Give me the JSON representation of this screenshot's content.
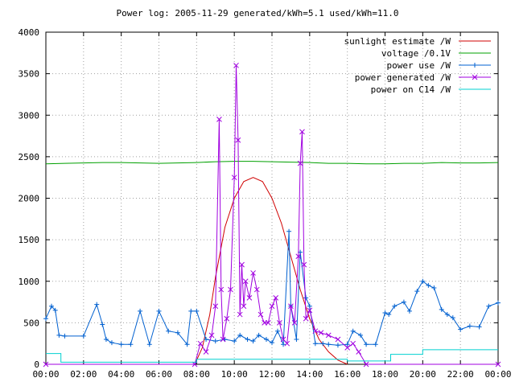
{
  "chart_data": {
    "type": "line",
    "title": "Power log: 2005-11-29 generated/kWh=5.1 used/kWh=11.0",
    "xlabel": "",
    "ylabel": "",
    "xlim_hours": [
      0,
      24
    ],
    "ylim": [
      0,
      4000
    ],
    "x_tick_labels": [
      "00:00",
      "02:00",
      "04:00",
      "06:00",
      "08:00",
      "10:00",
      "12:00",
      "14:00",
      "16:00",
      "18:00",
      "20:00",
      "22:00",
      "00:00"
    ],
    "y_ticks": [
      0,
      500,
      1000,
      1500,
      2000,
      2500,
      3000,
      3500,
      4000
    ],
    "grid": true,
    "legend_position": "top-right",
    "series": [
      {
        "name": "sunlight estimate /W",
        "color": "#d00000",
        "style": "line",
        "x_hours": [
          7.9,
          8.3,
          8.7,
          9.0,
          9.5,
          10.0,
          10.5,
          11.0,
          11.5,
          12.0,
          12.5,
          13.0,
          13.5,
          14.0,
          14.5,
          15.0,
          15.5,
          16.0
        ],
        "values": [
          0,
          200,
          600,
          1050,
          1650,
          2000,
          2200,
          2250,
          2200,
          2000,
          1700,
          1300,
          900,
          550,
          300,
          150,
          50,
          0
        ]
      },
      {
        "name": "voltage /0.1V",
        "color": "#00a000",
        "style": "line",
        "x_hours": [
          0,
          1,
          2,
          3,
          4,
          5,
          6,
          7,
          8,
          9,
          10,
          11,
          12,
          13,
          14,
          15,
          16,
          17,
          18,
          19,
          20,
          21,
          22,
          23,
          24
        ],
        "values": [
          2415,
          2420,
          2425,
          2430,
          2430,
          2425,
          2420,
          2425,
          2430,
          2440,
          2445,
          2445,
          2440,
          2435,
          2430,
          2420,
          2420,
          2415,
          2415,
          2420,
          2420,
          2430,
          2425,
          2425,
          2430
        ]
      },
      {
        "name": "power use /W",
        "color": "#0060d0",
        "style": "line+plus",
        "x_hours": [
          0,
          0.3,
          0.5,
          0.7,
          1.0,
          2.0,
          2.7,
          3.0,
          3.2,
          3.5,
          4.0,
          4.5,
          5.0,
          5.5,
          6.0,
          6.5,
          7.0,
          7.5,
          7.7,
          8.0,
          8.5,
          9.0,
          9.5,
          10.0,
          10.3,
          10.7,
          11.0,
          11.3,
          11.7,
          12.0,
          12.3,
          12.6,
          12.9,
          13.0,
          13.3,
          13.5,
          13.8,
          14.0,
          14.3,
          14.7,
          15.0,
          15.5,
          16.0,
          16.3,
          16.7,
          17.0,
          17.5,
          18.0,
          18.2,
          18.5,
          19.0,
          19.3,
          19.7,
          20.0,
          20.3,
          20.6,
          21.0,
          21.3,
          21.6,
          22.0,
          22.5,
          23.0,
          23.5,
          24.0
        ],
        "values": [
          550,
          700,
          650,
          350,
          340,
          340,
          720,
          480,
          300,
          260,
          240,
          240,
          640,
          240,
          640,
          400,
          380,
          240,
          640,
          640,
          300,
          280,
          300,
          280,
          350,
          300,
          280,
          350,
          300,
          260,
          400,
          240,
          1600,
          700,
          300,
          1350,
          800,
          700,
          250,
          250,
          240,
          230,
          240,
          400,
          350,
          240,
          240,
          620,
          600,
          700,
          750,
          640,
          880,
          1000,
          950,
          920,
          660,
          600,
          560,
          420,
          460,
          450,
          700,
          740
        ]
      },
      {
        "name": "power generated /W",
        "color": "#a000e0",
        "style": "line+x",
        "x_hours": [
          0,
          7.9,
          8.2,
          8.5,
          8.8,
          9.0,
          9.2,
          9.3,
          9.4,
          9.6,
          9.8,
          10.0,
          10.1,
          10.2,
          10.3,
          10.4,
          10.5,
          10.6,
          10.8,
          11.0,
          11.2,
          11.4,
          11.6,
          11.8,
          12.0,
          12.2,
          12.4,
          12.6,
          12.8,
          13.0,
          13.2,
          13.4,
          13.5,
          13.6,
          13.7,
          13.8,
          14.0,
          14.3,
          14.6,
          15.0,
          15.5,
          16.0,
          16.3,
          16.6,
          17.0,
          24.0
        ],
        "values": [
          0,
          0,
          250,
          150,
          350,
          700,
          2950,
          900,
          300,
          550,
          900,
          2250,
          3600,
          2700,
          600,
          1200,
          700,
          1000,
          800,
          1100,
          900,
          600,
          500,
          500,
          700,
          800,
          500,
          300,
          250,
          700,
          500,
          1300,
          2420,
          2800,
          1200,
          550,
          650,
          400,
          380,
          350,
          300,
          200,
          250,
          150,
          0,
          0
        ]
      },
      {
        "name": "power on C14 /W",
        "color": "#00d0d0",
        "style": "line",
        "x_hours": [
          0,
          0.8,
          0.8,
          8.0,
          8.0,
          16.0,
          16.0,
          18.3,
          18.3,
          20.0,
          20.0,
          24.0
        ],
        "values": [
          130,
          130,
          25,
          25,
          60,
          60,
          40,
          40,
          120,
          120,
          175,
          175
        ]
      }
    ]
  }
}
